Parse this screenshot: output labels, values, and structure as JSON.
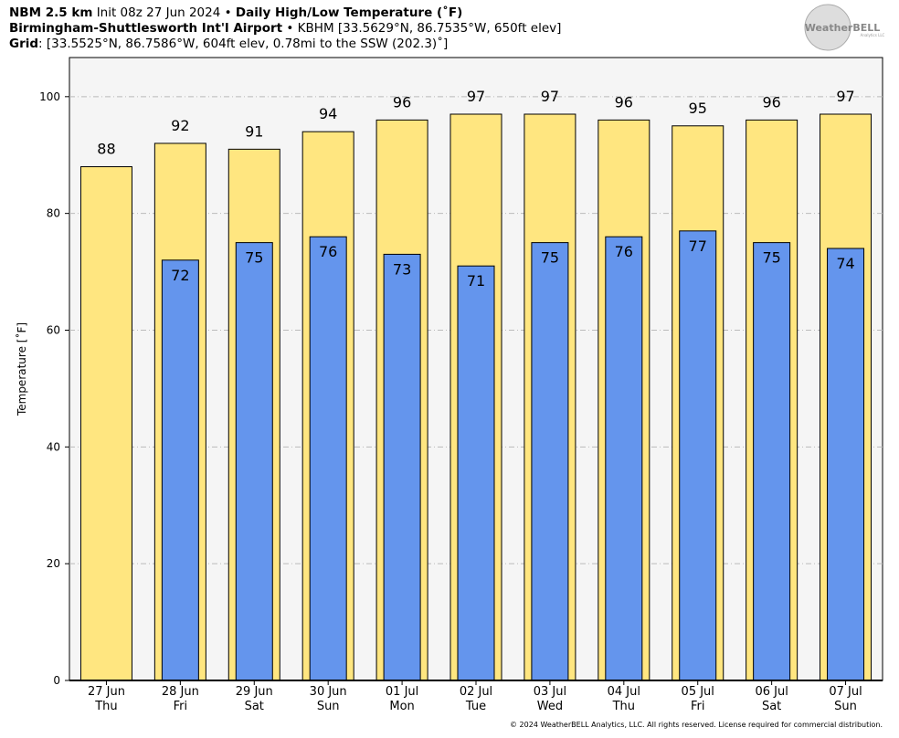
{
  "chart_data": {
    "type": "bar",
    "header": {
      "model": "NBM 2.5 km",
      "init": "Init 08z 27 Jun 2024",
      "sep": "•",
      "title": "Daily High/Low Temperature (˚F)",
      "station": "Birmingham-Shuttlesworth Int'l Airport",
      "station_info": "KBHM [33.5629°N, 86.7535°W, 650ft elev]",
      "grid_label": "Grid",
      "grid_info": ": [33.5525°N, 86.7586°W, 604ft elev, 0.78mi to the SSW (202.3)˚]"
    },
    "logo": {
      "main": "WeatherBELL",
      "sub": "Analytics LLC"
    },
    "footer": "© 2024 WeatherBELL Analytics, LLC. All rights reserved. License required for commercial distribution.",
    "y_label": "Temperature [˚F]",
    "categories": [
      "27 Jun",
      "28 Jun",
      "29 Jun",
      "30 Jun",
      "01 Jul",
      "02 Jul",
      "03 Jul",
      "04 Jul",
      "05 Jul",
      "06 Jul",
      "07 Jul"
    ],
    "weekdays": [
      "Thu",
      "Fri",
      "Sat",
      "Sun",
      "Mon",
      "Tue",
      "Wed",
      "Thu",
      "Fri",
      "Sat",
      "Sun"
    ],
    "series": [
      {
        "name": "High",
        "color": "#ffe680",
        "values": [
          88,
          92,
          91,
          94,
          96,
          97,
          97,
          96,
          95,
          96,
          97
        ]
      },
      {
        "name": "Low",
        "color": "#6495ed",
        "values": [
          null,
          72,
          75,
          76,
          73,
          71,
          75,
          76,
          77,
          75,
          74
        ]
      }
    ],
    "ylim": [
      0,
      106.7
    ],
    "yticks": [
      0,
      20,
      40,
      60,
      80,
      100
    ],
    "grid": true
  }
}
